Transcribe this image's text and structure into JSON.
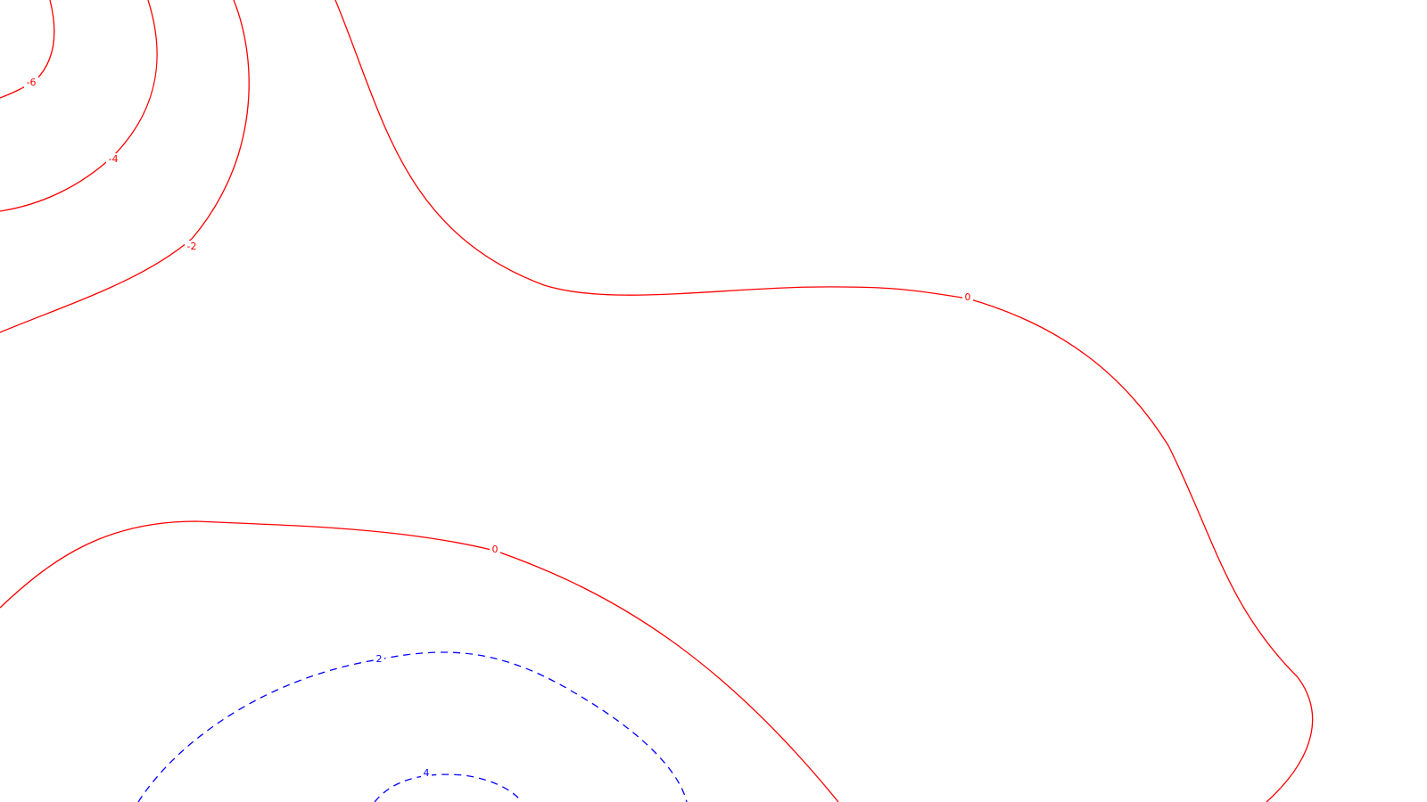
{
  "chart_data": {
    "type": "contour",
    "title": "",
    "xlabel": "",
    "ylabel": "",
    "grid": false,
    "legend": "none",
    "colors": {
      "negative": "#ff0000",
      "positive": "#0000ff",
      "background": "#ffffff"
    },
    "line_styles": {
      "negative": "solid",
      "positive": "dashed"
    },
    "levels": [
      {
        "label": "-6",
        "sign": "negative"
      },
      {
        "label": "-4",
        "sign": "negative"
      },
      {
        "label": "-2",
        "sign": "negative"
      },
      {
        "label": "0",
        "sign": "negative"
      },
      {
        "label": "0",
        "sign": "negative"
      },
      {
        "label": "2",
        "sign": "positive"
      },
      {
        "label": "4",
        "sign": "positive"
      }
    ]
  }
}
